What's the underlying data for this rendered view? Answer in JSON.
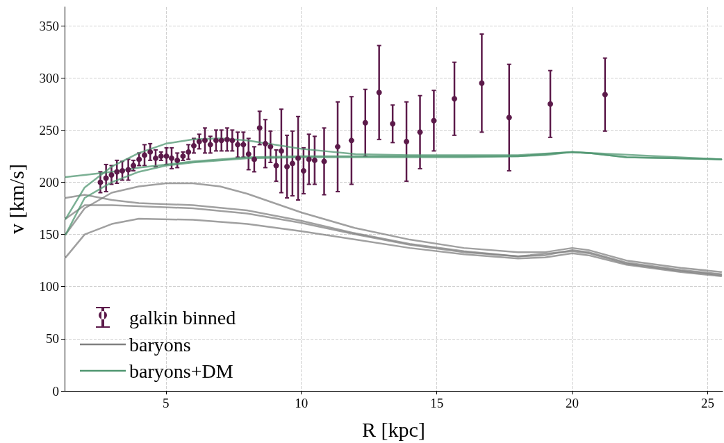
{
  "chart_data": {
    "type": "line",
    "xlabel": "R [kpc]",
    "ylabel": "v [km/s]",
    "xlim": [
      1.26,
      25.55
    ],
    "ylim": [
      0,
      368
    ],
    "xticks": [
      5,
      10,
      15,
      20,
      25
    ],
    "yticks": [
      0,
      50,
      100,
      150,
      200,
      250,
      300,
      350
    ],
    "grid": true,
    "legend": "bottom left",
    "marker": "none",
    "line_style": "solid",
    "series": [
      {
        "name": "baryons",
        "color": "#808080",
        "x": [
          1.3,
          2,
          3,
          4,
          5,
          6,
          7,
          8,
          9,
          10,
          12,
          14,
          16,
          18,
          19,
          20,
          20.6,
          22,
          24,
          25.5
        ],
        "values": [
          150,
          175,
          190,
          196,
          199,
          199,
          196,
          189,
          180,
          171,
          156,
          145,
          137,
          133,
          133,
          137,
          135,
          125,
          118,
          114
        ]
      },
      {
        "color": "#808080",
        "x": [
          1.3,
          2,
          3,
          4,
          6,
          8,
          10,
          12,
          14,
          16,
          18,
          19,
          20,
          20.6,
          22,
          24,
          25.5
        ],
        "values": [
          185,
          188,
          183,
          180,
          178,
          173,
          163,
          151,
          141,
          134,
          129,
          130,
          135,
          133,
          123,
          116,
          112
        ]
      },
      {
        "color": "#808080",
        "x": [
          1.3,
          2,
          3,
          4,
          6,
          8,
          10,
          12,
          14,
          16,
          18,
          20,
          20.6,
          22,
          24,
          25.5
        ],
        "values": [
          165,
          178,
          178,
          177,
          175,
          170,
          161,
          150,
          140,
          133,
          129,
          134,
          132,
          122,
          115,
          111
        ]
      },
      {
        "color": "#808080",
        "x": [
          1.3,
          2,
          3,
          4,
          6,
          8,
          10,
          12,
          14,
          16,
          18,
          19,
          20,
          20.6,
          22,
          24,
          25.5
        ],
        "values": [
          128,
          150,
          160,
          165,
          164,
          160,
          153,
          145,
          137,
          131,
          127,
          128,
          132,
          130,
          121,
          114,
          110
        ]
      },
      {
        "name": "baryons+DM",
        "color": "#4f9670",
        "x": [
          1.3,
          2,
          3,
          4,
          5,
          6,
          8,
          10,
          12,
          14,
          16,
          18,
          19,
          20,
          20.6,
          22,
          24,
          25.5
        ],
        "values": [
          150,
          185,
          200,
          210,
          216,
          219,
          223,
          224,
          224,
          224,
          224,
          225,
          226,
          229,
          228,
          224,
          223,
          222
        ]
      },
      {
        "color": "#4f9670",
        "x": [
          1.3,
          2,
          3,
          4,
          5,
          6,
          7,
          8,
          9,
          10,
          12,
          14,
          16,
          18,
          20,
          20.6,
          22,
          25.5
        ],
        "values": [
          165,
          195,
          215,
          228,
          237,
          241,
          242,
          240,
          236,
          232,
          227,
          226,
          226,
          226,
          229,
          228,
          224,
          222
        ]
      },
      {
        "color": "#4f9670",
        "x": [
          1.3,
          2,
          3,
          4,
          6,
          8,
          10,
          14,
          18,
          20,
          25.5
        ],
        "values": [
          205,
          207,
          210,
          214,
          220,
          224,
          225,
          225,
          225,
          229,
          222
        ]
      },
      {
        "name": "galkin binned",
        "type": "scatter",
        "marker": "circle",
        "color": "#5c1a4a",
        "x": [
          2.58,
          2.79,
          2.99,
          3.19,
          3.39,
          3.61,
          3.8,
          4.01,
          4.21,
          4.42,
          4.62,
          4.82,
          5.02,
          5.21,
          5.42,
          5.63,
          5.83,
          6.03,
          6.23,
          6.44,
          6.64,
          6.85,
          7.05,
          7.26,
          7.45,
          7.65,
          7.86,
          8.05,
          8.26,
          8.46,
          8.67,
          8.86,
          9.07,
          9.26,
          9.47,
          9.67,
          9.88,
          10.08,
          10.28,
          10.49,
          10.84,
          11.34,
          11.85,
          12.36,
          12.87,
          13.37,
          13.88,
          14.38,
          14.89,
          15.65,
          16.66,
          17.67,
          19.19,
          21.21
        ],
        "values": [
          200,
          204,
          207,
          210,
          211,
          212,
          216,
          222,
          226,
          229,
          223,
          225,
          225,
          223,
          221,
          225,
          229,
          235,
          239,
          240,
          236,
          240,
          240,
          241,
          240,
          236,
          236,
          227,
          222,
          252,
          237,
          234,
          216,
          230,
          215,
          218,
          223,
          211,
          222,
          221,
          220,
          234,
          240,
          257,
          286,
          256,
          239,
          248,
          259,
          280,
          295,
          262,
          275,
          284
        ],
        "errors": [
          10,
          13,
          9,
          11,
          9,
          10,
          5,
          6,
          10,
          8,
          8,
          4,
          8,
          10,
          7,
          4,
          7,
          7,
          7,
          12,
          8,
          10,
          10,
          11,
          10,
          12,
          12,
          15,
          12,
          16,
          23,
          15,
          15,
          40,
          30,
          31,
          40,
          22,
          24,
          23,
          32,
          43,
          42,
          32,
          45,
          18,
          38,
          35,
          29,
          35,
          47,
          51,
          32,
          35
        ]
      }
    ]
  }
}
